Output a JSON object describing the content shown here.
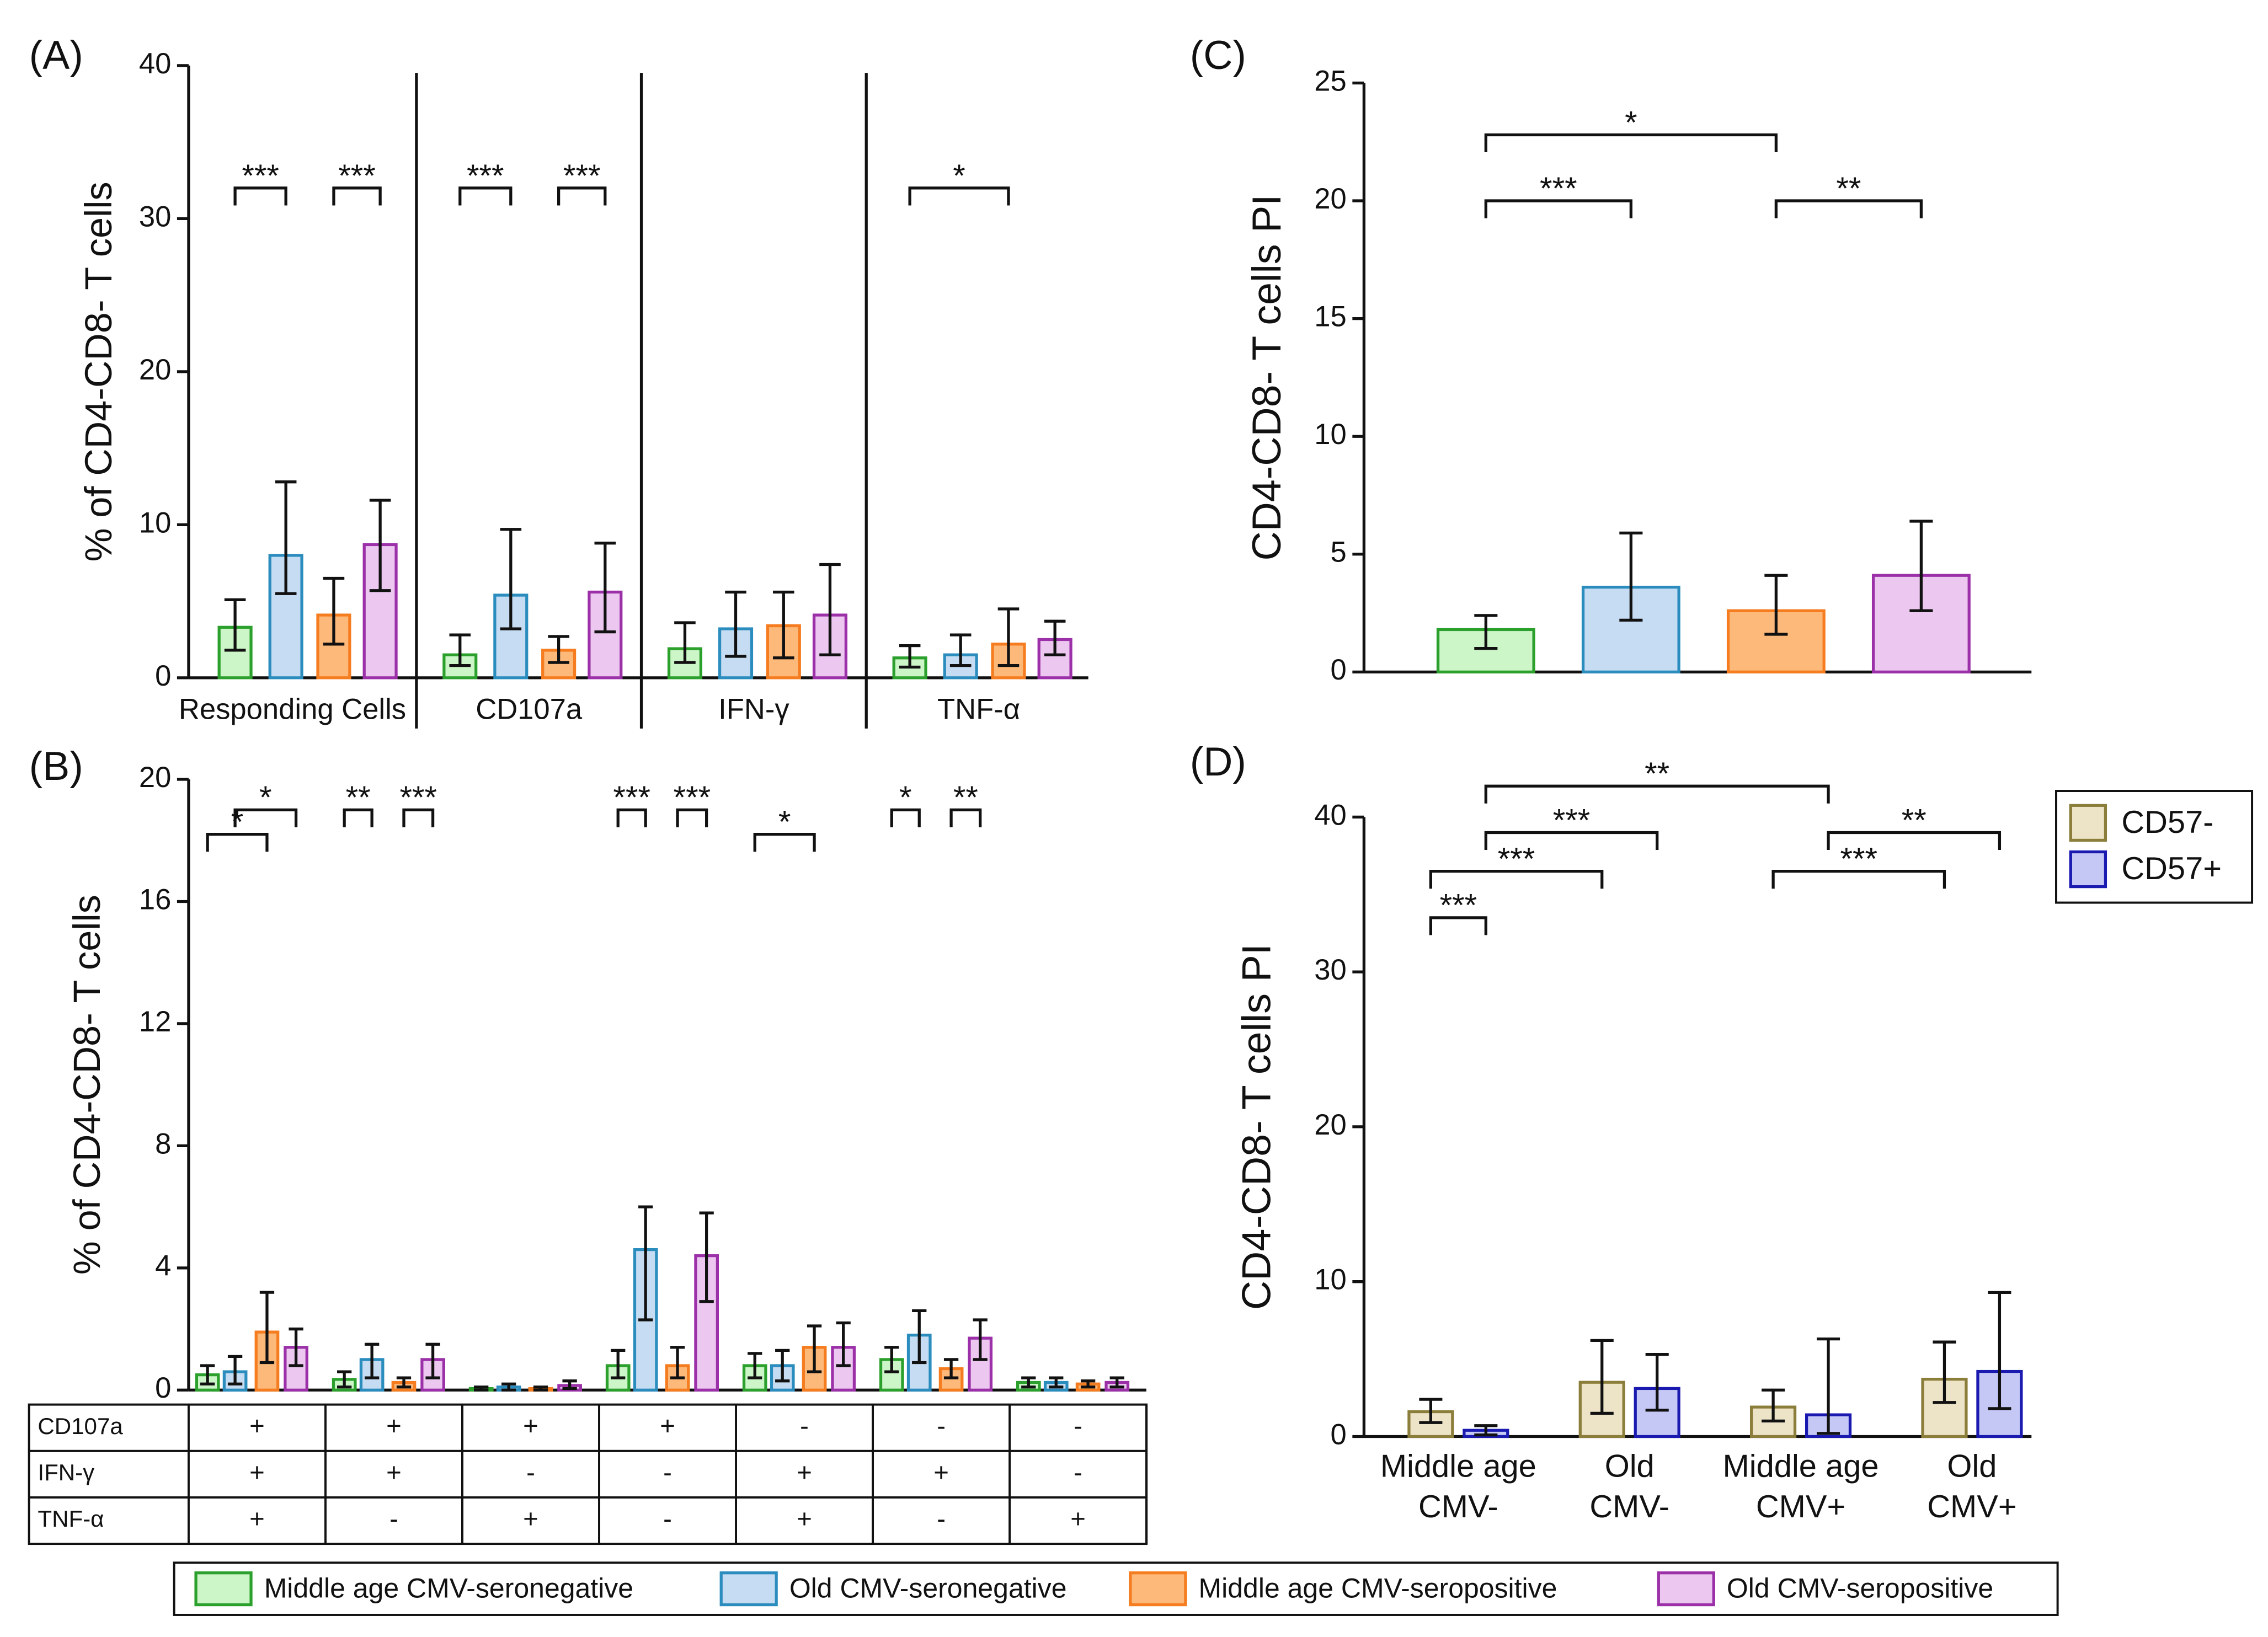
{
  "chart_data": [
    {
      "type": "bar",
      "panel_label": "(A)",
      "y_label": "% of CD4-CD8- T cells",
      "categories": [
        "Responding Cells",
        "CD107a",
        "IFN-γ",
        "TNF-α"
      ],
      "ylim": [
        0,
        40
      ],
      "yticks": [
        0,
        10,
        20,
        30,
        40
      ],
      "series": [
        {
          "name": "Middle age CMV-seronegative",
          "color": "#ccf5c8",
          "edge": "#2ca02c",
          "values": [
            3.3,
            1.5,
            1.9,
            1.3
          ],
          "lower": [
            1.8,
            0.8,
            1.0,
            0.7
          ],
          "upper": [
            5.1,
            2.8,
            3.6,
            2.1
          ]
        },
        {
          "name": "Old CMV-seronegative",
          "color": "#c6dcf2",
          "edge": "#2b8cbe",
          "values": [
            8.0,
            5.4,
            3.2,
            1.5
          ],
          "lower": [
            5.5,
            3.2,
            1.4,
            0.8
          ],
          "upper": [
            12.8,
            9.7,
            5.6,
            2.8
          ]
        },
        {
          "name": "Middle age  CMV-seropositive",
          "color": "#fdb97a",
          "edge": "#f57c1f",
          "values": [
            4.1,
            1.8,
            3.4,
            2.2
          ],
          "lower": [
            2.2,
            1.0,
            1.3,
            0.8
          ],
          "upper": [
            6.5,
            2.7,
            5.6,
            4.5
          ]
        },
        {
          "name": "Old CMV-seropositive",
          "color": "#ecc8f0",
          "edge": "#9b30a8",
          "values": [
            8.7,
            5.6,
            4.1,
            2.5
          ],
          "lower": [
            5.7,
            3.0,
            1.5,
            1.5
          ],
          "upper": [
            11.6,
            8.8,
            7.4,
            3.7
          ]
        }
      ],
      "annotations": [
        {
          "label": "***",
          "y": 32,
          "from": [
            0,
            0
          ],
          "to": [
            0,
            1
          ]
        },
        {
          "label": "***",
          "y": 32,
          "from": [
            0,
            2
          ],
          "to": [
            0,
            3
          ]
        },
        {
          "label": "***",
          "y": 32,
          "from": [
            1,
            0
          ],
          "to": [
            1,
            1
          ]
        },
        {
          "label": "***",
          "y": 32,
          "from": [
            1,
            2
          ],
          "to": [
            1,
            3
          ]
        },
        {
          "label": "*",
          "y": 32,
          "from": [
            3,
            0
          ],
          "to": [
            3,
            2
          ]
        }
      ]
    },
    {
      "type": "bar",
      "panel_label": "(B)",
      "y_label": "% of CD4-CD8- T cells",
      "ylim": [
        0,
        20
      ],
      "yticks": [
        0,
        4,
        8,
        12,
        16,
        20
      ],
      "series": [
        {
          "name": "Middle age CMV-seronegative",
          "color": "#ccf5c8",
          "edge": "#2ca02c",
          "values": [
            0.5,
            0.35,
            0.05,
            0.8,
            0.8,
            1.0,
            0.25
          ],
          "lower": [
            0.2,
            0.1,
            0.0,
            0.4,
            0.4,
            0.6,
            0.1
          ],
          "upper": [
            0.8,
            0.6,
            0.1,
            1.3,
            1.2,
            1.4,
            0.4
          ]
        },
        {
          "name": "Old CMV-seronegative",
          "color": "#c6dcf2",
          "edge": "#2b8cbe",
          "values": [
            0.6,
            1.0,
            0.1,
            4.6,
            0.8,
            1.8,
            0.25
          ],
          "lower": [
            0.2,
            0.4,
            0.0,
            2.3,
            0.3,
            0.9,
            0.1
          ],
          "upper": [
            1.1,
            1.5,
            0.2,
            6.0,
            1.3,
            2.6,
            0.4
          ]
        },
        {
          "name": "Middle age  CMV-seropositive",
          "color": "#fdb97a",
          "edge": "#f57c1f",
          "values": [
            1.9,
            0.25,
            0.05,
            0.8,
            1.4,
            0.7,
            0.2
          ],
          "lower": [
            0.9,
            0.1,
            0.0,
            0.4,
            0.6,
            0.4,
            0.1
          ],
          "upper": [
            3.2,
            0.4,
            0.1,
            1.4,
            2.1,
            1.0,
            0.3
          ]
        },
        {
          "name": "Old CMV-seropositive",
          "color": "#ecc8f0",
          "edge": "#9b30a8",
          "values": [
            1.4,
            1.0,
            0.15,
            4.4,
            1.4,
            1.7,
            0.25
          ],
          "lower": [
            0.8,
            0.4,
            0.05,
            2.9,
            0.8,
            1.0,
            0.1
          ],
          "upper": [
            2.0,
            1.5,
            0.3,
            5.8,
            2.2,
            2.3,
            0.4
          ]
        }
      ],
      "annotations": [
        {
          "label": "*",
          "y": 18.2,
          "from": [
            0,
            0
          ],
          "to": [
            0,
            2
          ]
        },
        {
          "label": "*",
          "y": 19.0,
          "from": [
            0,
            1
          ],
          "to": [
            0,
            3
          ]
        },
        {
          "label": "**",
          "y": 19.0,
          "from": [
            1,
            0
          ],
          "to": [
            1,
            1
          ]
        },
        {
          "label": "***",
          "y": 19.0,
          "from": [
            1,
            2
          ],
          "to": [
            1,
            3
          ]
        },
        {
          "label": "***",
          "y": 19.0,
          "from": [
            3,
            0
          ],
          "to": [
            3,
            1
          ]
        },
        {
          "label": "***",
          "y": 19.0,
          "from": [
            3,
            2
          ],
          "to": [
            3,
            3
          ]
        },
        {
          "label": "*",
          "y": 18.2,
          "from": [
            4,
            0
          ],
          "to": [
            4,
            2
          ]
        },
        {
          "label": "*",
          "y": 19.0,
          "from": [
            5,
            0
          ],
          "to": [
            5,
            1
          ]
        },
        {
          "label": "**",
          "y": 19.0,
          "from": [
            5,
            2
          ],
          "to": [
            5,
            3
          ]
        }
      ],
      "table": {
        "rows": [
          {
            "label": "CD107a",
            "cells": [
              "+",
              "+",
              "+",
              "+",
              "-",
              "-",
              "-"
            ]
          },
          {
            "label": "IFN-γ",
            "cells": [
              "+",
              "+",
              "-",
              "-",
              "+",
              "+",
              "-"
            ]
          },
          {
            "label": "TNF-α",
            "cells": [
              "+",
              "-",
              "+",
              "-",
              "+",
              "-",
              "+"
            ]
          }
        ]
      }
    },
    {
      "type": "bar",
      "panel_label": "(C)",
      "y_label": "CD4-CD8- T cells PI",
      "ylim": [
        0,
        25
      ],
      "yticks": [
        0,
        5,
        10,
        15,
        20,
        25
      ],
      "series": [
        {
          "name": "Middle age CMV-seronegative",
          "color": "#ccf5c8",
          "edge": "#2ca02c",
          "values": [
            1.8
          ],
          "lower": [
            1.0
          ],
          "upper": [
            2.4
          ]
        },
        {
          "name": "Old CMV-seronegative",
          "color": "#c6dcf2",
          "edge": "#2b8cbe",
          "values": [
            3.6
          ],
          "lower": [
            2.2
          ],
          "upper": [
            5.9
          ]
        },
        {
          "name": "Middle age  CMV-seropositive",
          "color": "#fdb97a",
          "edge": "#f57c1f",
          "values": [
            2.6
          ],
          "lower": [
            1.6
          ],
          "upper": [
            4.1
          ]
        },
        {
          "name": "Old CMV-seropositive",
          "color": "#ecc8f0",
          "edge": "#9b30a8",
          "values": [
            4.1
          ],
          "lower": [
            2.6
          ],
          "upper": [
            6.4
          ]
        }
      ],
      "annotations": [
        {
          "label": "***",
          "y": 20,
          "from": [
            0,
            0
          ],
          "to": [
            0,
            1
          ]
        },
        {
          "label": "**",
          "y": 20,
          "from": [
            0,
            2
          ],
          "to": [
            0,
            3
          ]
        },
        {
          "label": "*",
          "y": 22.8,
          "from": [
            0,
            0
          ],
          "to": [
            0,
            2
          ]
        }
      ]
    },
    {
      "type": "bar",
      "panel_label": "(D)",
      "y_label": "CD4-CD8- T cells PI",
      "categories": [
        "Middle age CMV-",
        "Old CMV-",
        "Middle age CMV+",
        "Old CMV+"
      ],
      "ylim": [
        0,
        40
      ],
      "yticks": [
        0,
        10,
        20,
        30,
        40
      ],
      "legend": "top-right",
      "series": [
        {
          "name": "CD57-",
          "color": "#ede4c8",
          "edge": "#8b7d3a",
          "values": [
            1.6,
            3.5,
            1.9,
            3.7
          ],
          "lower": [
            0.9,
            1.5,
            1.0,
            2.2
          ],
          "upper": [
            2.4,
            6.2,
            3.0,
            6.1
          ]
        },
        {
          "name": "CD57+",
          "color": "#c5c8f5",
          "edge": "#1a1ab0",
          "values": [
            0.4,
            3.1,
            1.4,
            4.2
          ],
          "lower": [
            0.1,
            1.7,
            0.2,
            1.8
          ],
          "upper": [
            0.7,
            5.3,
            6.3,
            9.3
          ]
        }
      ],
      "annotations": [
        {
          "label": "***",
          "y": 33.5,
          "from": [
            0,
            0
          ],
          "to": [
            0,
            1
          ]
        },
        {
          "label": "***",
          "y": 36.5,
          "from": [
            0,
            0
          ],
          "to": [
            1,
            0
          ]
        },
        {
          "label": "***",
          "y": 39,
          "from": [
            0,
            1
          ],
          "to": [
            1,
            1
          ]
        },
        {
          "label": "**",
          "y": 42,
          "from": [
            0,
            1
          ],
          "to": [
            2,
            1
          ]
        },
        {
          "label": "***",
          "y": 36.5,
          "from": [
            2,
            0
          ],
          "to": [
            3,
            0
          ]
        },
        {
          "label": "**",
          "y": 39,
          "from": [
            2,
            1
          ],
          "to": [
            3,
            1
          ]
        }
      ]
    }
  ]
}
